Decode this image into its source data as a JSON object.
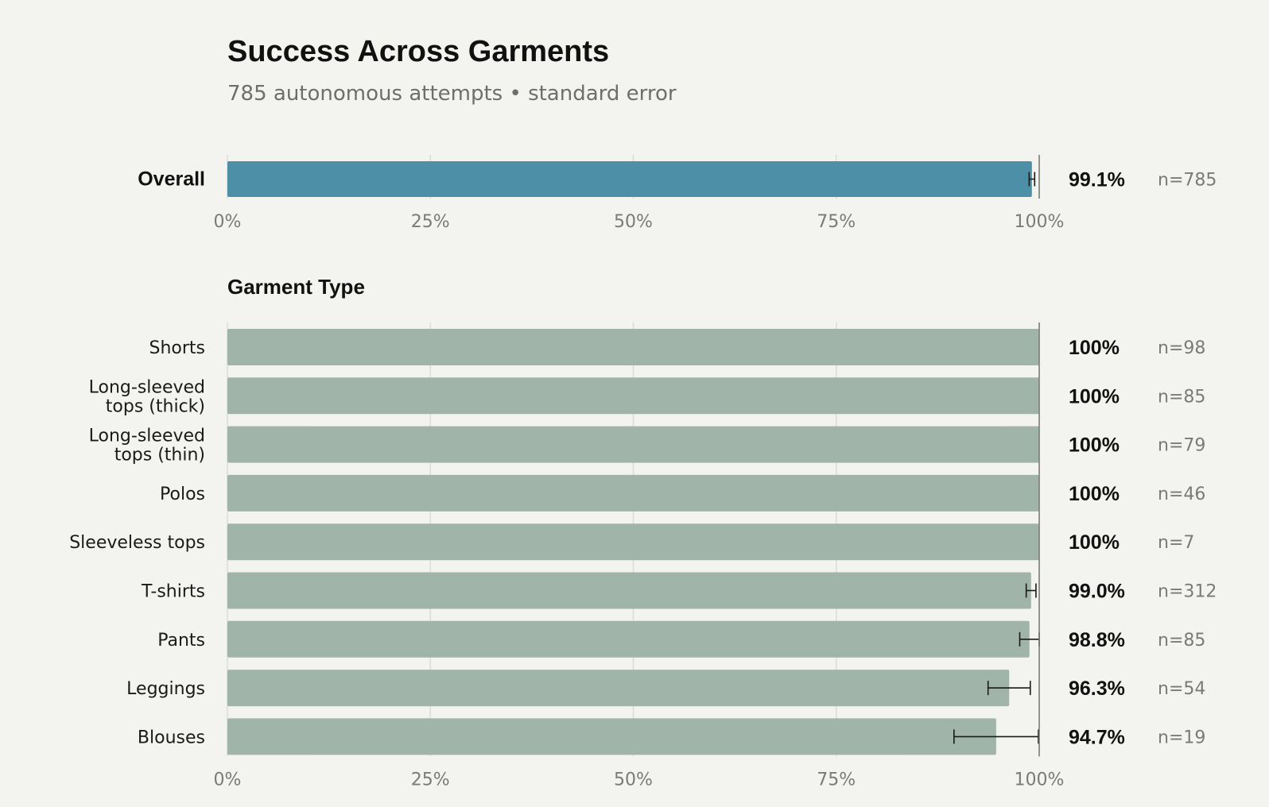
{
  "title": "Success Across Garments",
  "subtitle": "785 autonomous attempts • standard error",
  "colors": {
    "overall_bar": "#4e8fa8",
    "garment_bar": "#a1b4aa",
    "background": "#f3f3ef",
    "gridline": "#dcdcd6",
    "reference_line": "#7a7a76",
    "error_bar": "#1a1a1a"
  },
  "chart_data": [
    {
      "type": "bar",
      "orientation": "horizontal",
      "categories": [
        "Overall"
      ],
      "values": [
        99.1
      ],
      "value_labels": [
        "99.1%"
      ],
      "error": [
        0.34
      ],
      "n_labels": [
        "n=785"
      ],
      "xlim": [
        0,
        100
      ],
      "xticks": [
        "0%",
        "25%",
        "50%",
        "75%",
        "100%"
      ],
      "grid": true
    },
    {
      "type": "bar",
      "orientation": "horizontal",
      "section_label": "Garment Type",
      "categories": [
        [
          "Shorts"
        ],
        [
          "Long-sleeved",
          "tops (thick)"
        ],
        [
          "Long-sleeved",
          "tops (thin)"
        ],
        [
          "Polos"
        ],
        [
          "Sleeveless tops"
        ],
        [
          "T-shirts"
        ],
        [
          "Pants"
        ],
        [
          "Leggings"
        ],
        [
          "Blouses"
        ]
      ],
      "values": [
        100,
        100,
        100,
        100,
        100,
        99.0,
        98.8,
        96.3,
        94.7
      ],
      "value_labels": [
        "100%",
        "100%",
        "100%",
        "100%",
        "100%",
        "99.0%",
        "98.8%",
        "96.3%",
        "94.7%"
      ],
      "error": [
        0,
        0,
        0,
        0,
        0,
        0.6,
        1.2,
        2.6,
        5.2
      ],
      "n_labels": [
        "n=98",
        "n=85",
        "n=79",
        "n=46",
        "n=7",
        "n=312",
        "n=85",
        "n=54",
        "n=19"
      ],
      "xlim": [
        0,
        100
      ],
      "xticks": [
        "0%",
        "25%",
        "50%",
        "75%",
        "100%"
      ],
      "grid": true
    }
  ]
}
